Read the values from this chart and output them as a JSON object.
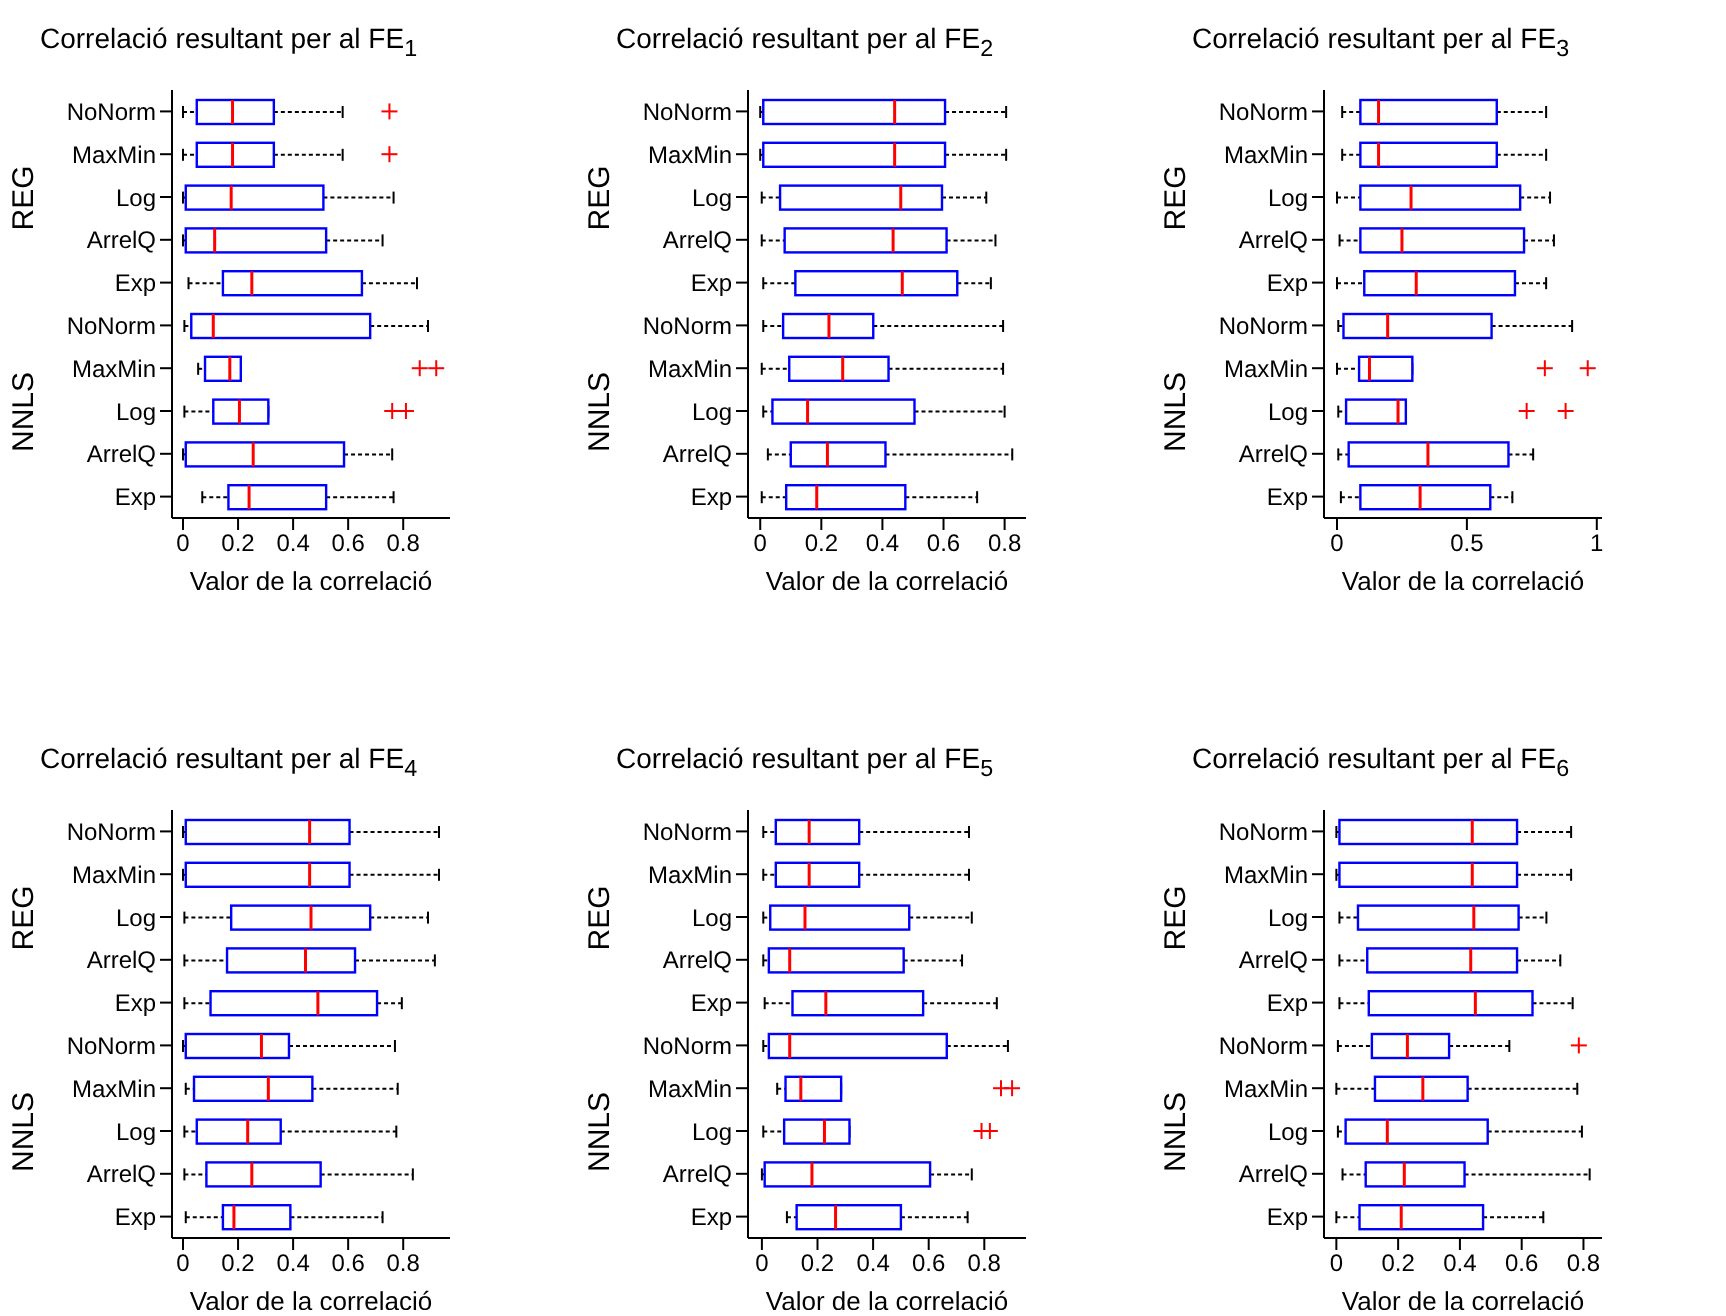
{
  "chart_data": [
    {
      "type": "box",
      "title": "Correlació resultant per al FE$_{1}$",
      "xlabel": "Valor de la correlació",
      "annotations": [
        "REG",
        "NNLS"
      ],
      "orientation": "horizontal",
      "color": "#0000ff",
      "categories": [
        "NoNorm",
        "MaxMin",
        "Log",
        "ArrelQ",
        "Exp",
        "NoNorm",
        "MaxMin",
        "Log",
        "ArrelQ",
        "Exp"
      ],
      "xlim": [
        -0.04,
        0.97
      ],
      "xticks": [
        0,
        0.2,
        0.4,
        0.6,
        0.8
      ],
      "boxes": [
        {
          "low": 0,
          "q1": 0.05,
          "median": 0.18,
          "q3": 0.33,
          "high": 0.58,
          "outliers": [
            0.75
          ]
        },
        {
          "low": 0,
          "q1": 0.05,
          "median": 0.18,
          "q3": 0.33,
          "high": 0.58,
          "outliers": [
            0.75
          ]
        },
        {
          "low": 0,
          "q1": 0.01,
          "median": 0.175,
          "q3": 0.51,
          "high": 0.765
        },
        {
          "low": 0,
          "q1": 0.01,
          "median": 0.115,
          "q3": 0.52,
          "high": 0.725
        },
        {
          "low": 0.02,
          "q1": 0.145,
          "median": 0.25,
          "q3": 0.65,
          "high": 0.85
        },
        {
          "low": 0.005,
          "q1": 0.03,
          "median": 0.11,
          "q3": 0.68,
          "high": 0.89
        },
        {
          "low": 0.055,
          "q1": 0.08,
          "median": 0.17,
          "q3": 0.21,
          "high": 0.21,
          "outliers": [
            0.86,
            0.92
          ]
        },
        {
          "low": 0.005,
          "q1": 0.11,
          "median": 0.205,
          "q3": 0.31,
          "high": 0.31,
          "outliers": [
            0.76,
            0.81
          ]
        },
        {
          "low": 0,
          "q1": 0.01,
          "median": 0.255,
          "q3": 0.585,
          "high": 0.76
        },
        {
          "low": 0.07,
          "q1": 0.165,
          "median": 0.24,
          "q3": 0.52,
          "high": 0.765
        }
      ]
    },
    {
      "type": "box",
      "title": "Correlació resultant per al FE$_{2}$",
      "xlabel": "Valor de la correlació",
      "annotations": [
        "REG",
        "NNLS"
      ],
      "orientation": "horizontal",
      "color": "#0000ff",
      "categories": [
        "NoNorm",
        "MaxMin",
        "Log",
        "ArrelQ",
        "Exp",
        "NoNorm",
        "MaxMin",
        "Log",
        "ArrelQ",
        "Exp"
      ],
      "xlim": [
        -0.04,
        0.87
      ],
      "xticks": [
        0,
        0.2,
        0.4,
        0.6,
        0.8
      ],
      "boxes": [
        {
          "low": 0,
          "q1": 0.01,
          "median": 0.44,
          "q3": 0.605,
          "high": 0.805
        },
        {
          "low": 0,
          "q1": 0.01,
          "median": 0.44,
          "q3": 0.605,
          "high": 0.805
        },
        {
          "low": 0.005,
          "q1": 0.065,
          "median": 0.46,
          "q3": 0.595,
          "high": 0.74
        },
        {
          "low": 0.005,
          "q1": 0.08,
          "median": 0.435,
          "q3": 0.61,
          "high": 0.77
        },
        {
          "low": 0.01,
          "q1": 0.115,
          "median": 0.465,
          "q3": 0.645,
          "high": 0.755
        },
        {
          "low": 0.01,
          "q1": 0.075,
          "median": 0.225,
          "q3": 0.37,
          "high": 0.795
        },
        {
          "low": 0.005,
          "q1": 0.095,
          "median": 0.27,
          "q3": 0.42,
          "high": 0.795
        },
        {
          "low": 0.01,
          "q1": 0.04,
          "median": 0.155,
          "q3": 0.505,
          "high": 0.8
        },
        {
          "low": 0.025,
          "q1": 0.1,
          "median": 0.22,
          "q3": 0.41,
          "high": 0.825
        },
        {
          "low": 0.005,
          "q1": 0.085,
          "median": 0.185,
          "q3": 0.475,
          "high": 0.71
        }
      ]
    },
    {
      "type": "box",
      "title": "Correlació resultant per al FE$_{3}$",
      "xlabel": "Valor de la correlació",
      "annotations": [
        "REG",
        "NNLS"
      ],
      "orientation": "horizontal",
      "color": "#0000ff",
      "categories": [
        "NoNorm",
        "MaxMin",
        "Log",
        "ArrelQ",
        "Exp",
        "NoNorm",
        "MaxMin",
        "Log",
        "ArrelQ",
        "Exp"
      ],
      "xlim": [
        -0.05,
        1.02
      ],
      "xticks": [
        0,
        0.5,
        1
      ],
      "boxes": [
        {
          "low": 0.02,
          "q1": 0.09,
          "median": 0.16,
          "q3": 0.615,
          "high": 0.805
        },
        {
          "low": 0.02,
          "q1": 0.09,
          "median": 0.16,
          "q3": 0.615,
          "high": 0.805
        },
        {
          "low": 0,
          "q1": 0.09,
          "median": 0.285,
          "q3": 0.705,
          "high": 0.82
        },
        {
          "low": 0.01,
          "q1": 0.09,
          "median": 0.25,
          "q3": 0.72,
          "high": 0.835
        },
        {
          "low": 0,
          "q1": 0.105,
          "median": 0.305,
          "q3": 0.685,
          "high": 0.805
        },
        {
          "low": 0.005,
          "q1": 0.025,
          "median": 0.195,
          "q3": 0.595,
          "high": 0.905
        },
        {
          "low": 0,
          "q1": 0.085,
          "median": 0.125,
          "q3": 0.29,
          "high": 0.29,
          "outliers": [
            0.8,
            0.965
          ]
        },
        {
          "low": 0.005,
          "q1": 0.035,
          "median": 0.235,
          "q3": 0.265,
          "high": 0.265,
          "outliers": [
            0.73,
            0.88
          ]
        },
        {
          "low": 0.005,
          "q1": 0.045,
          "median": 0.35,
          "q3": 0.66,
          "high": 0.755
        },
        {
          "low": 0.015,
          "q1": 0.09,
          "median": 0.32,
          "q3": 0.59,
          "high": 0.675
        }
      ]
    },
    {
      "type": "box",
      "title": "Correlació resultant per al FE$_{4}$",
      "xlabel": "Valor de la correlació",
      "annotations": [
        "REG",
        "NNLS"
      ],
      "orientation": "horizontal",
      "color": "#0000ff",
      "categories": [
        "NoNorm",
        "MaxMin",
        "Log",
        "ArrelQ",
        "Exp",
        "NoNorm",
        "MaxMin",
        "Log",
        "ArrelQ",
        "Exp"
      ],
      "xlim": [
        -0.04,
        0.97
      ],
      "xticks": [
        0,
        0.2,
        0.4,
        0.6,
        0.8
      ],
      "boxes": [
        {
          "low": 0,
          "q1": 0.01,
          "median": 0.46,
          "q3": 0.605,
          "high": 0.93
        },
        {
          "low": 0,
          "q1": 0.01,
          "median": 0.46,
          "q3": 0.605,
          "high": 0.93
        },
        {
          "low": 0.005,
          "q1": 0.175,
          "median": 0.465,
          "q3": 0.68,
          "high": 0.89
        },
        {
          "low": 0.005,
          "q1": 0.16,
          "median": 0.445,
          "q3": 0.625,
          "high": 0.915
        },
        {
          "low": 0.005,
          "q1": 0.1,
          "median": 0.49,
          "q3": 0.705,
          "high": 0.795
        },
        {
          "low": 0,
          "q1": 0.01,
          "median": 0.285,
          "q3": 0.385,
          "high": 0.77
        },
        {
          "low": 0.01,
          "q1": 0.04,
          "median": 0.31,
          "q3": 0.47,
          "high": 0.78
        },
        {
          "low": 0.005,
          "q1": 0.05,
          "median": 0.235,
          "q3": 0.355,
          "high": 0.775
        },
        {
          "low": 0.005,
          "q1": 0.085,
          "median": 0.25,
          "q3": 0.5,
          "high": 0.835
        },
        {
          "low": 0.01,
          "q1": 0.145,
          "median": 0.185,
          "q3": 0.39,
          "high": 0.725
        }
      ]
    },
    {
      "type": "box",
      "title": "Correlació resultant per al FE$_{5}$",
      "xlabel": "Valor de la correlació",
      "annotations": [
        "REG",
        "NNLS"
      ],
      "orientation": "horizontal",
      "color": "#0000ff",
      "categories": [
        "NoNorm",
        "MaxMin",
        "Log",
        "ArrelQ",
        "Exp",
        "NoNorm",
        "MaxMin",
        "Log",
        "ArrelQ",
        "Exp"
      ],
      "xlim": [
        -0.05,
        0.95
      ],
      "xticks": [
        0,
        0.2,
        0.4,
        0.6,
        0.8
      ],
      "boxes": [
        {
          "low": 0.005,
          "q1": 0.05,
          "median": 0.17,
          "q3": 0.35,
          "high": 0.745
        },
        {
          "low": 0.005,
          "q1": 0.05,
          "median": 0.17,
          "q3": 0.35,
          "high": 0.745
        },
        {
          "low": 0.005,
          "q1": 0.03,
          "median": 0.155,
          "q3": 0.53,
          "high": 0.755
        },
        {
          "low": 0.005,
          "q1": 0.025,
          "median": 0.1,
          "q3": 0.51,
          "high": 0.72
        },
        {
          "low": 0.01,
          "q1": 0.11,
          "median": 0.23,
          "q3": 0.58,
          "high": 0.845
        },
        {
          "low": 0.005,
          "q1": 0.025,
          "median": 0.1,
          "q3": 0.665,
          "high": 0.885
        },
        {
          "low": 0.055,
          "q1": 0.085,
          "median": 0.14,
          "q3": 0.285,
          "high": 0.285,
          "outliers": [
            0.86,
            0.9
          ]
        },
        {
          "low": 0.005,
          "q1": 0.08,
          "median": 0.225,
          "q3": 0.315,
          "high": 0.315,
          "outliers": [
            0.79,
            0.82
          ]
        },
        {
          "low": 0,
          "q1": 0.01,
          "median": 0.18,
          "q3": 0.605,
          "high": 0.755
        },
        {
          "low": 0.09,
          "q1": 0.125,
          "median": 0.265,
          "q3": 0.5,
          "high": 0.74
        }
      ]
    },
    {
      "type": "box",
      "title": "Correlació resultant per al FE$_{6}$",
      "xlabel": "Valor de la correlació",
      "annotations": [
        "REG",
        "NNLS"
      ],
      "orientation": "horizontal",
      "color": "#0000ff",
      "categories": [
        "NoNorm",
        "MaxMin",
        "Log",
        "ArrelQ",
        "Exp",
        "NoNorm",
        "MaxMin",
        "Log",
        "ArrelQ",
        "Exp"
      ],
      "xlim": [
        -0.04,
        0.86
      ],
      "xticks": [
        0,
        0.2,
        0.4,
        0.6,
        0.8
      ],
      "boxes": [
        {
          "low": 0,
          "q1": 0.01,
          "median": 0.44,
          "q3": 0.585,
          "high": 0.76
        },
        {
          "low": 0,
          "q1": 0.01,
          "median": 0.44,
          "q3": 0.585,
          "high": 0.76
        },
        {
          "low": 0.01,
          "q1": 0.07,
          "median": 0.445,
          "q3": 0.59,
          "high": 0.68
        },
        {
          "low": 0.01,
          "q1": 0.1,
          "median": 0.435,
          "q3": 0.585,
          "high": 0.725
        },
        {
          "low": 0.01,
          "q1": 0.105,
          "median": 0.45,
          "q3": 0.635,
          "high": 0.765
        },
        {
          "low": 0.005,
          "q1": 0.115,
          "median": 0.23,
          "q3": 0.365,
          "high": 0.56,
          "outliers": [
            0.785
          ]
        },
        {
          "low": 0,
          "q1": 0.125,
          "median": 0.28,
          "q3": 0.425,
          "high": 0.78
        },
        {
          "low": 0.005,
          "q1": 0.03,
          "median": 0.165,
          "q3": 0.49,
          "high": 0.795
        },
        {
          "low": 0.02,
          "q1": 0.095,
          "median": 0.22,
          "q3": 0.415,
          "high": 0.82
        },
        {
          "low": 0,
          "q1": 0.075,
          "median": 0.21,
          "q3": 0.475,
          "high": 0.67
        }
      ]
    }
  ]
}
